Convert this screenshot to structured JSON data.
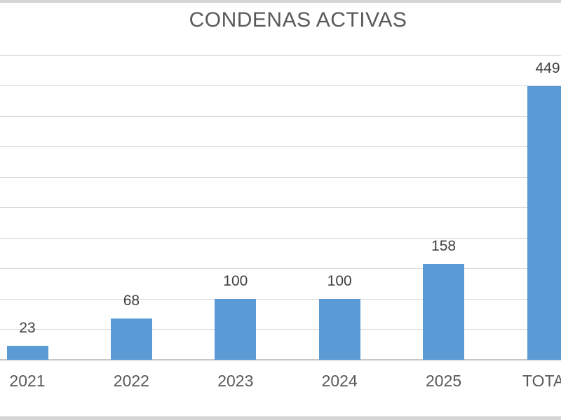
{
  "chart_data": {
    "type": "bar",
    "title": "CONDENAS ACTIVAS",
    "categories": [
      "2021",
      "2022",
      "2023",
      "2024",
      "2025",
      "TOTAL"
    ],
    "values": [
      23,
      68,
      100,
      100,
      158,
      449
    ],
    "xlabel": "",
    "ylabel": "",
    "ylim": [
      0,
      500
    ],
    "gridline_step": 50,
    "grid": true,
    "legend": false,
    "data_labels": true,
    "colors": {
      "bar": "#5b9bd5",
      "title_text": "#595959",
      "category_text": "#595959",
      "data_label_text": "#404040",
      "gridline": "#d9d9d9",
      "axis_line": "#c6c6c6",
      "edge_strip": "#d6d6d6"
    },
    "notes_visible_crop": "chart cropped at left and right edges; TOTAL label and bar partially cut off"
  }
}
